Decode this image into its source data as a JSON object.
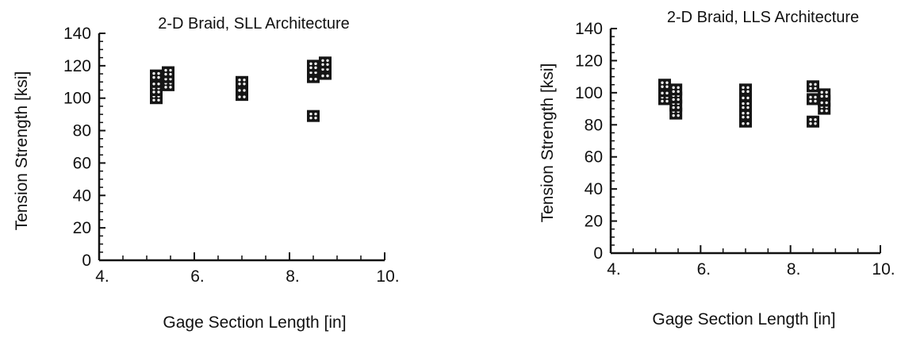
{
  "chart_data": [
    {
      "type": "scatter",
      "title": "2-D Braid, SLL Architecture",
      "xlabel": "Gage Section Length [in]",
      "ylabel": "Tension Strength [ksi]",
      "xlim": [
        4,
        10
      ],
      "ylim": [
        0,
        140
      ],
      "x_tick_labels": [
        "4.",
        "6.",
        "8.",
        "10."
      ],
      "y_tick_labels": [
        "0",
        "20",
        "40",
        "60",
        "80",
        "100",
        "120",
        "140"
      ],
      "points": [
        {
          "x": 5.2,
          "y": 100
        },
        {
          "x": 5.2,
          "y": 105
        },
        {
          "x": 5.2,
          "y": 110
        },
        {
          "x": 5.2,
          "y": 114
        },
        {
          "x": 5.45,
          "y": 108
        },
        {
          "x": 5.45,
          "y": 113
        },
        {
          "x": 5.45,
          "y": 116
        },
        {
          "x": 7.0,
          "y": 102
        },
        {
          "x": 7.0,
          "y": 106
        },
        {
          "x": 7.0,
          "y": 110
        },
        {
          "x": 8.5,
          "y": 113
        },
        {
          "x": 8.5,
          "y": 117
        },
        {
          "x": 8.5,
          "y": 120
        },
        {
          "x": 8.5,
          "y": 89
        },
        {
          "x": 8.75,
          "y": 115
        },
        {
          "x": 8.75,
          "y": 119
        },
        {
          "x": 8.75,
          "y": 122
        }
      ]
    },
    {
      "type": "scatter",
      "title": "2-D Braid, LLS Architecture",
      "xlabel": "Gage Section Length [in]",
      "ylabel": "Tension Strength [ksi]",
      "xlim": [
        4,
        10
      ],
      "ylim": [
        0,
        140
      ],
      "x_tick_labels": [
        "4.",
        "6.",
        "8.",
        "10."
      ],
      "y_tick_labels": [
        "0",
        "20",
        "40",
        "60",
        "80",
        "100",
        "120",
        "140"
      ],
      "points": [
        {
          "x": 5.2,
          "y": 96
        },
        {
          "x": 5.2,
          "y": 101
        },
        {
          "x": 5.2,
          "y": 105
        },
        {
          "x": 5.45,
          "y": 87
        },
        {
          "x": 5.45,
          "y": 92
        },
        {
          "x": 5.45,
          "y": 97
        },
        {
          "x": 5.45,
          "y": 102
        },
        {
          "x": 7.0,
          "y": 82
        },
        {
          "x": 7.0,
          "y": 86
        },
        {
          "x": 7.0,
          "y": 92
        },
        {
          "x": 7.0,
          "y": 98
        },
        {
          "x": 7.0,
          "y": 102
        },
        {
          "x": 8.5,
          "y": 82
        },
        {
          "x": 8.5,
          "y": 96
        },
        {
          "x": 8.5,
          "y": 104
        },
        {
          "x": 8.75,
          "y": 90
        },
        {
          "x": 8.75,
          "y": 95
        },
        {
          "x": 8.75,
          "y": 99
        }
      ]
    }
  ]
}
